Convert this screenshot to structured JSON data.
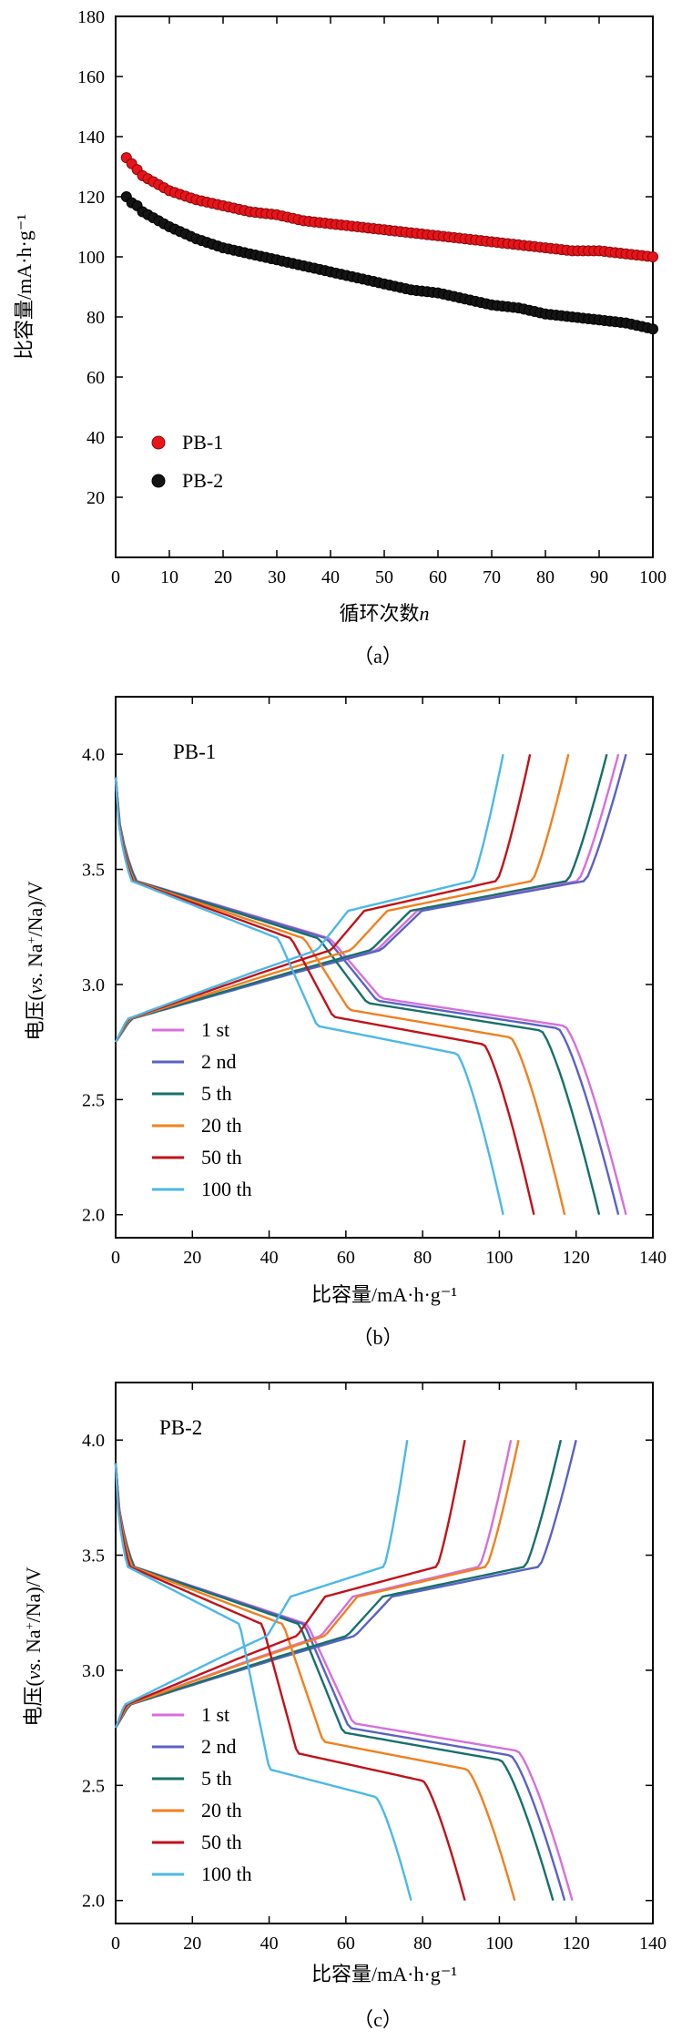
{
  "chart_data": [
    {
      "type": "scatter",
      "caption": "（a）",
      "xlabel_main": "循环次数",
      "xlabel_var": "n",
      "ylabel": "比容量/mA·h·g⁻¹",
      "xlim": [
        0,
        100
      ],
      "ylim": [
        0,
        180
      ],
      "xticks": [
        "0",
        "10",
        "20",
        "30",
        "40",
        "50",
        "60",
        "70",
        "80",
        "90",
        "100"
      ],
      "yticks": [
        "20",
        "40",
        "60",
        "80",
        "100",
        "120",
        "140",
        "160",
        "180"
      ],
      "legend_position": "lower-left",
      "series": [
        {
          "name": "PB-1",
          "color": "#e8141a",
          "x": [
            2,
            3,
            4,
            5,
            6,
            8,
            10,
            15,
            20,
            25,
            30,
            35,
            40,
            45,
            50,
            55,
            60,
            65,
            70,
            75,
            80,
            85,
            90,
            95,
            100
          ],
          "values": [
            133,
            131,
            129,
            127,
            126,
            124,
            122,
            119,
            117,
            115,
            114,
            112,
            111,
            110,
            109,
            108,
            107,
            106,
            105,
            104,
            103,
            102,
            102,
            101,
            100
          ]
        },
        {
          "name": "PB-2",
          "color": "#141414",
          "x": [
            2,
            3,
            4,
            5,
            6,
            8,
            10,
            15,
            20,
            25,
            30,
            35,
            40,
            45,
            50,
            55,
            60,
            65,
            70,
            75,
            80,
            85,
            90,
            95,
            100
          ],
          "values": [
            120,
            118,
            117,
            115,
            114,
            112,
            110,
            106,
            103,
            101,
            99,
            97,
            95,
            93,
            91,
            89,
            88,
            86,
            84,
            83,
            81,
            80,
            79,
            78,
            76
          ]
        }
      ]
    },
    {
      "type": "line",
      "caption": "（b）",
      "label": "PB-1",
      "xlabel": "比容量/mA·h·g⁻¹",
      "ylabel_pre": "电压(",
      "ylabel_it": "vs.",
      "ylabel_mid": " Na",
      "ylabel_sup": "+",
      "ylabel_post": "/Na)/V",
      "xlim": [
        0,
        140
      ],
      "ylim": [
        1.9,
        4.25
      ],
      "xticks": [
        "0",
        "20",
        "40",
        "60",
        "80",
        "100",
        "120",
        "140"
      ],
      "yticks": [
        "2.0",
        "2.5",
        "3.0",
        "3.5",
        "4.0"
      ],
      "legend_position": "lower-left",
      "series": [
        {
          "name": "1 st",
          "color": "#d66fdc",
          "cap_d": 133,
          "cap_c": 131,
          "plat": 2.92
        },
        {
          "name": "2 nd",
          "color": "#5a62c4",
          "cap_d": 131,
          "cap_c": 133,
          "plat": 2.91
        },
        {
          "name": "5 th",
          "color": "#17706a",
          "cap_d": 126,
          "cap_c": 128,
          "plat": 2.9
        },
        {
          "name": "20 th",
          "color": "#f0801e",
          "cap_d": 117,
          "cap_c": 118,
          "plat": 2.87
        },
        {
          "name": "50 th",
          "color": "#c0121a",
          "cap_d": 109,
          "cap_c": 108,
          "plat": 2.84
        },
        {
          "name": "100 th",
          "color": "#4bb8e8",
          "cap_d": 101,
          "cap_c": 101,
          "plat": 2.8
        }
      ]
    },
    {
      "type": "line",
      "caption": "（c）",
      "label": "PB-2",
      "xlabel": "比容量/mA·h·g⁻¹",
      "ylabel_pre": "电压(",
      "ylabel_it": "vs.",
      "ylabel_mid": " Na",
      "ylabel_sup": "+",
      "ylabel_post": "/Na)/V",
      "xlim": [
        0,
        140
      ],
      "ylim": [
        1.9,
        4.25
      ],
      "xticks": [
        "0",
        "20",
        "40",
        "60",
        "80",
        "100",
        "120",
        "140"
      ],
      "yticks": [
        "2.0",
        "2.5",
        "3.0",
        "3.5",
        "4.0"
      ],
      "legend_position": "lower-left",
      "series": [
        {
          "name": "1 st",
          "color": "#d66fdc",
          "cap_d": 119,
          "cap_c": 103,
          "plat": 2.75
        },
        {
          "name": "2 nd",
          "color": "#5a62c4",
          "cap_d": 117,
          "cap_c": 120,
          "plat": 2.73
        },
        {
          "name": "5 th",
          "color": "#17706a",
          "cap_d": 114,
          "cap_c": 116,
          "plat": 2.71
        },
        {
          "name": "20 th",
          "color": "#f0801e",
          "cap_d": 104,
          "cap_c": 105,
          "plat": 2.67
        },
        {
          "name": "50 th",
          "color": "#c0121a",
          "cap_d": 91,
          "cap_c": 91,
          "plat": 2.62
        },
        {
          "name": "100 th",
          "color": "#4bb8e8",
          "cap_d": 77,
          "cap_c": 76,
          "plat": 2.55
        }
      ]
    }
  ]
}
